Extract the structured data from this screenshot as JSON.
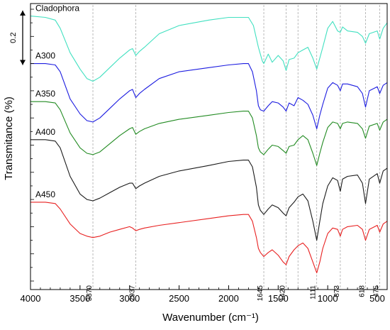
{
  "chart_data": {
    "type": "line",
    "title": "",
    "xlabel": "Wavenumber (cm⁻¹)",
    "ylabel": "Transmitance (%)",
    "xlim": [
      4000,
      400
    ],
    "x_reversed": true,
    "x_ticks": [
      4000,
      3500,
      3000,
      2500,
      2000,
      1500,
      1000,
      500
    ],
    "ylim": [
      0,
      1
    ],
    "y_ticks_unlabeled": true,
    "scale_bar": {
      "label": "0.2",
      "value": 0.2
    },
    "grid": false,
    "legend": "inline labels left of each trace",
    "annotations": [
      {
        "x": 3370,
        "label": "3370"
      },
      {
        "x": 2937,
        "label": "2937"
      },
      {
        "x": 1645,
        "label": "1645"
      },
      {
        "x": 1420,
        "label": "1420"
      },
      {
        "x": 1111,
        "label": "1111"
      },
      {
        "x": 873,
        "label": "873"
      },
      {
        "x": 618,
        "label": "618"
      },
      {
        "x": 475,
        "label": "475"
      }
    ],
    "extra_reference_lines": [
      1300
    ],
    "series": [
      {
        "name": "Cladophora",
        "color": "#40e0c0",
        "label_x": 3950,
        "points": [
          [
            4000,
            0.975
          ],
          [
            3850,
            0.97
          ],
          [
            3750,
            0.96
          ],
          [
            3700,
            0.93
          ],
          [
            3600,
            0.84
          ],
          [
            3500,
            0.78
          ],
          [
            3430,
            0.745
          ],
          [
            3370,
            0.735
          ],
          [
            3300,
            0.75
          ],
          [
            3200,
            0.785
          ],
          [
            3100,
            0.82
          ],
          [
            3000,
            0.85
          ],
          [
            2970,
            0.855
          ],
          [
            2937,
            0.83
          ],
          [
            2900,
            0.845
          ],
          [
            2850,
            0.86
          ],
          [
            2700,
            0.91
          ],
          [
            2500,
            0.94
          ],
          [
            2200,
            0.96
          ],
          [
            2000,
            0.97
          ],
          [
            1850,
            0.97
          ],
          [
            1800,
            0.97
          ],
          [
            1750,
            0.94
          ],
          [
            1700,
            0.86
          ],
          [
            1660,
            0.81
          ],
          [
            1645,
            0.8
          ],
          [
            1600,
            0.835
          ],
          [
            1560,
            0.805
          ],
          [
            1500,
            0.83
          ],
          [
            1450,
            0.81
          ],
          [
            1420,
            0.775
          ],
          [
            1390,
            0.815
          ],
          [
            1340,
            0.82
          ],
          [
            1300,
            0.84
          ],
          [
            1250,
            0.85
          ],
          [
            1200,
            0.86
          ],
          [
            1150,
            0.82
          ],
          [
            1111,
            0.78
          ],
          [
            1080,
            0.82
          ],
          [
            1050,
            0.86
          ],
          [
            1000,
            0.93
          ],
          [
            950,
            0.955
          ],
          [
            900,
            0.92
          ],
          [
            873,
            0.915
          ],
          [
            850,
            0.935
          ],
          [
            800,
            0.92
          ],
          [
            700,
            0.915
          ],
          [
            650,
            0.9
          ],
          [
            618,
            0.875
          ],
          [
            580,
            0.91
          ],
          [
            500,
            0.92
          ],
          [
            475,
            0.89
          ],
          [
            440,
            0.93
          ],
          [
            400,
            0.95
          ]
        ]
      },
      {
        "name": "A300",
        "color": "#1c1ce0",
        "label_x": 3950,
        "points": [
          [
            4000,
            0.8
          ],
          [
            3850,
            0.8
          ],
          [
            3750,
            0.795
          ],
          [
            3700,
            0.77
          ],
          [
            3600,
            0.67
          ],
          [
            3500,
            0.615
          ],
          [
            3430,
            0.59
          ],
          [
            3370,
            0.585
          ],
          [
            3300,
            0.6
          ],
          [
            3200,
            0.635
          ],
          [
            3100,
            0.67
          ],
          [
            3000,
            0.7
          ],
          [
            2970,
            0.705
          ],
          [
            2937,
            0.675
          ],
          [
            2900,
            0.69
          ],
          [
            2850,
            0.705
          ],
          [
            2700,
            0.745
          ],
          [
            2500,
            0.77
          ],
          [
            2200,
            0.785
          ],
          [
            2000,
            0.795
          ],
          [
            1850,
            0.8
          ],
          [
            1800,
            0.8
          ],
          [
            1760,
            0.77
          ],
          [
            1720,
            0.7
          ],
          [
            1700,
            0.645
          ],
          [
            1680,
            0.63
          ],
          [
            1645,
            0.625
          ],
          [
            1600,
            0.645
          ],
          [
            1560,
            0.66
          ],
          [
            1500,
            0.655
          ],
          [
            1450,
            0.64
          ],
          [
            1420,
            0.625
          ],
          [
            1390,
            0.655
          ],
          [
            1340,
            0.645
          ],
          [
            1300,
            0.675
          ],
          [
            1250,
            0.665
          ],
          [
            1200,
            0.65
          ],
          [
            1150,
            0.61
          ],
          [
            1111,
            0.56
          ],
          [
            1080,
            0.61
          ],
          [
            1050,
            0.65
          ],
          [
            1000,
            0.71
          ],
          [
            950,
            0.73
          ],
          [
            900,
            0.72
          ],
          [
            873,
            0.7
          ],
          [
            850,
            0.725
          ],
          [
            800,
            0.725
          ],
          [
            700,
            0.715
          ],
          [
            650,
            0.69
          ],
          [
            618,
            0.64
          ],
          [
            580,
            0.7
          ],
          [
            500,
            0.715
          ],
          [
            475,
            0.69
          ],
          [
            440,
            0.72
          ],
          [
            400,
            0.73
          ]
        ]
      },
      {
        "name": "A350",
        "color": "#228b22",
        "label_x": 3950,
        "points": [
          [
            4000,
            0.66
          ],
          [
            3850,
            0.66
          ],
          [
            3750,
            0.655
          ],
          [
            3700,
            0.63
          ],
          [
            3600,
            0.545
          ],
          [
            3500,
            0.49
          ],
          [
            3430,
            0.47
          ],
          [
            3370,
            0.465
          ],
          [
            3300,
            0.475
          ],
          [
            3200,
            0.505
          ],
          [
            3100,
            0.535
          ],
          [
            3000,
            0.56
          ],
          [
            2970,
            0.565
          ],
          [
            2937,
            0.54
          ],
          [
            2900,
            0.55
          ],
          [
            2850,
            0.56
          ],
          [
            2700,
            0.58
          ],
          [
            2500,
            0.595
          ],
          [
            2200,
            0.61
          ],
          [
            2000,
            0.62
          ],
          [
            1850,
            0.625
          ],
          [
            1800,
            0.625
          ],
          [
            1760,
            0.6
          ],
          [
            1720,
            0.535
          ],
          [
            1700,
            0.49
          ],
          [
            1680,
            0.475
          ],
          [
            1645,
            0.465
          ],
          [
            1600,
            0.485
          ],
          [
            1560,
            0.5
          ],
          [
            1500,
            0.495
          ],
          [
            1450,
            0.48
          ],
          [
            1420,
            0.47
          ],
          [
            1390,
            0.495
          ],
          [
            1340,
            0.5
          ],
          [
            1300,
            0.52
          ],
          [
            1250,
            0.535
          ],
          [
            1200,
            0.52
          ],
          [
            1150,
            0.47
          ],
          [
            1111,
            0.425
          ],
          [
            1080,
            0.47
          ],
          [
            1050,
            0.51
          ],
          [
            1000,
            0.565
          ],
          [
            950,
            0.585
          ],
          [
            900,
            0.58
          ],
          [
            873,
            0.56
          ],
          [
            850,
            0.58
          ],
          [
            800,
            0.585
          ],
          [
            700,
            0.58
          ],
          [
            650,
            0.56
          ],
          [
            618,
            0.525
          ],
          [
            580,
            0.57
          ],
          [
            500,
            0.58
          ],
          [
            475,
            0.555
          ],
          [
            440,
            0.585
          ],
          [
            400,
            0.595
          ]
        ]
      },
      {
        "name": "A400",
        "color": "#1a1a1a",
        "label_x": 3950,
        "points": [
          [
            4000,
            0.52
          ],
          [
            3850,
            0.52
          ],
          [
            3750,
            0.515
          ],
          [
            3700,
            0.49
          ],
          [
            3600,
            0.385
          ],
          [
            3500,
            0.32
          ],
          [
            3430,
            0.3
          ],
          [
            3370,
            0.295
          ],
          [
            3300,
            0.305
          ],
          [
            3200,
            0.325
          ],
          [
            3100,
            0.345
          ],
          [
            3000,
            0.36
          ],
          [
            2970,
            0.36
          ],
          [
            2937,
            0.34
          ],
          [
            2900,
            0.35
          ],
          [
            2850,
            0.36
          ],
          [
            2700,
            0.385
          ],
          [
            2500,
            0.405
          ],
          [
            2200,
            0.425
          ],
          [
            2000,
            0.44
          ],
          [
            1850,
            0.445
          ],
          [
            1800,
            0.445
          ],
          [
            1760,
            0.42
          ],
          [
            1720,
            0.345
          ],
          [
            1700,
            0.28
          ],
          [
            1680,
            0.26
          ],
          [
            1645,
            0.245
          ],
          [
            1600,
            0.265
          ],
          [
            1560,
            0.28
          ],
          [
            1500,
            0.27
          ],
          [
            1450,
            0.25
          ],
          [
            1420,
            0.24
          ],
          [
            1390,
            0.27
          ],
          [
            1340,
            0.29
          ],
          [
            1300,
            0.31
          ],
          [
            1250,
            0.32
          ],
          [
            1200,
            0.295
          ],
          [
            1150,
            0.22
          ],
          [
            1111,
            0.15
          ],
          [
            1080,
            0.22
          ],
          [
            1050,
            0.285
          ],
          [
            1000,
            0.35
          ],
          [
            950,
            0.38
          ],
          [
            900,
            0.37
          ],
          [
            873,
            0.33
          ],
          [
            850,
            0.375
          ],
          [
            800,
            0.385
          ],
          [
            700,
            0.39
          ],
          [
            650,
            0.36
          ],
          [
            618,
            0.285
          ],
          [
            580,
            0.375
          ],
          [
            500,
            0.395
          ],
          [
            475,
            0.36
          ],
          [
            440,
            0.405
          ],
          [
            400,
            0.415
          ]
        ]
      },
      {
        "name": "A450",
        "color": "#e82020",
        "label_x": 3950,
        "points": [
          [
            4000,
            0.29
          ],
          [
            3850,
            0.29
          ],
          [
            3750,
            0.285
          ],
          [
            3700,
            0.265
          ],
          [
            3600,
            0.21
          ],
          [
            3500,
            0.175
          ],
          [
            3430,
            0.165
          ],
          [
            3370,
            0.16
          ],
          [
            3300,
            0.165
          ],
          [
            3200,
            0.18
          ],
          [
            3100,
            0.19
          ],
          [
            3000,
            0.2
          ],
          [
            2970,
            0.195
          ],
          [
            2937,
            0.185
          ],
          [
            2900,
            0.19
          ],
          [
            2850,
            0.195
          ],
          [
            2700,
            0.205
          ],
          [
            2500,
            0.215
          ],
          [
            2200,
            0.23
          ],
          [
            2000,
            0.24
          ],
          [
            1850,
            0.245
          ],
          [
            1800,
            0.245
          ],
          [
            1760,
            0.22
          ],
          [
            1720,
            0.16
          ],
          [
            1700,
            0.12
          ],
          [
            1680,
            0.105
          ],
          [
            1645,
            0.09
          ],
          [
            1600,
            0.105
          ],
          [
            1560,
            0.115
          ],
          [
            1500,
            0.095
          ],
          [
            1450,
            0.07
          ],
          [
            1420,
            0.06
          ],
          [
            1390,
            0.09
          ],
          [
            1340,
            0.115
          ],
          [
            1300,
            0.13
          ],
          [
            1250,
            0.14
          ],
          [
            1200,
            0.12
          ],
          [
            1150,
            0.07
          ],
          [
            1111,
            0.03
          ],
          [
            1080,
            0.07
          ],
          [
            1050,
            0.12
          ],
          [
            1000,
            0.175
          ],
          [
            950,
            0.195
          ],
          [
            900,
            0.19
          ],
          [
            873,
            0.165
          ],
          [
            850,
            0.19
          ],
          [
            800,
            0.2
          ],
          [
            700,
            0.205
          ],
          [
            650,
            0.19
          ],
          [
            618,
            0.15
          ],
          [
            580,
            0.19
          ],
          [
            500,
            0.205
          ],
          [
            475,
            0.18
          ],
          [
            440,
            0.21
          ],
          [
            400,
            0.22
          ]
        ]
      }
    ]
  }
}
